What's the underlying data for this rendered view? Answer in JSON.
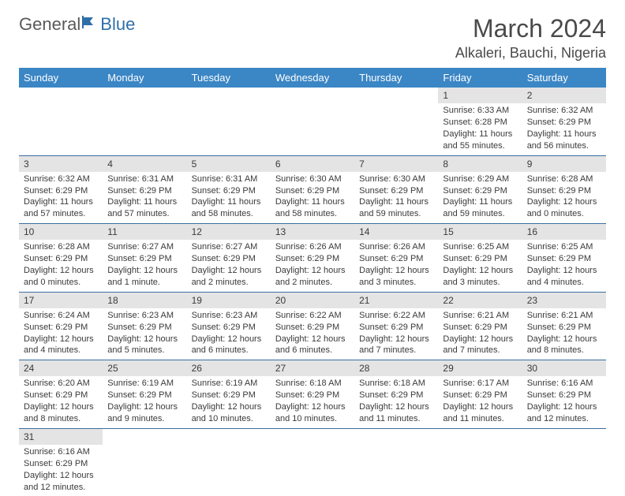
{
  "logo": {
    "general": "General",
    "blue": "Blue"
  },
  "title": "March 2024",
  "location": "Alkaleri, Bauchi, Nigeria",
  "colors": {
    "header_bg": "#3b86c5",
    "header_fg": "#ffffff",
    "daynum_bg": "#e4e4e4",
    "rule": "#3b6fa0",
    "logo_blue": "#2f6fa8",
    "text": "#3a3a3a"
  },
  "weekdays": [
    "Sunday",
    "Monday",
    "Tuesday",
    "Wednesday",
    "Thursday",
    "Friday",
    "Saturday"
  ],
  "weeks": [
    [
      null,
      null,
      null,
      null,
      null,
      {
        "n": "1",
        "sr": "Sunrise: 6:33 AM",
        "ss": "Sunset: 6:28 PM",
        "dl": "Daylight: 11 hours and 55 minutes."
      },
      {
        "n": "2",
        "sr": "Sunrise: 6:32 AM",
        "ss": "Sunset: 6:29 PM",
        "dl": "Daylight: 11 hours and 56 minutes."
      }
    ],
    [
      {
        "n": "3",
        "sr": "Sunrise: 6:32 AM",
        "ss": "Sunset: 6:29 PM",
        "dl": "Daylight: 11 hours and 57 minutes."
      },
      {
        "n": "4",
        "sr": "Sunrise: 6:31 AM",
        "ss": "Sunset: 6:29 PM",
        "dl": "Daylight: 11 hours and 57 minutes."
      },
      {
        "n": "5",
        "sr": "Sunrise: 6:31 AM",
        "ss": "Sunset: 6:29 PM",
        "dl": "Daylight: 11 hours and 58 minutes."
      },
      {
        "n": "6",
        "sr": "Sunrise: 6:30 AM",
        "ss": "Sunset: 6:29 PM",
        "dl": "Daylight: 11 hours and 58 minutes."
      },
      {
        "n": "7",
        "sr": "Sunrise: 6:30 AM",
        "ss": "Sunset: 6:29 PM",
        "dl": "Daylight: 11 hours and 59 minutes."
      },
      {
        "n": "8",
        "sr": "Sunrise: 6:29 AM",
        "ss": "Sunset: 6:29 PM",
        "dl": "Daylight: 11 hours and 59 minutes."
      },
      {
        "n": "9",
        "sr": "Sunrise: 6:28 AM",
        "ss": "Sunset: 6:29 PM",
        "dl": "Daylight: 12 hours and 0 minutes."
      }
    ],
    [
      {
        "n": "10",
        "sr": "Sunrise: 6:28 AM",
        "ss": "Sunset: 6:29 PM",
        "dl": "Daylight: 12 hours and 0 minutes."
      },
      {
        "n": "11",
        "sr": "Sunrise: 6:27 AM",
        "ss": "Sunset: 6:29 PM",
        "dl": "Daylight: 12 hours and 1 minute."
      },
      {
        "n": "12",
        "sr": "Sunrise: 6:27 AM",
        "ss": "Sunset: 6:29 PM",
        "dl": "Daylight: 12 hours and 2 minutes."
      },
      {
        "n": "13",
        "sr": "Sunrise: 6:26 AM",
        "ss": "Sunset: 6:29 PM",
        "dl": "Daylight: 12 hours and 2 minutes."
      },
      {
        "n": "14",
        "sr": "Sunrise: 6:26 AM",
        "ss": "Sunset: 6:29 PM",
        "dl": "Daylight: 12 hours and 3 minutes."
      },
      {
        "n": "15",
        "sr": "Sunrise: 6:25 AM",
        "ss": "Sunset: 6:29 PM",
        "dl": "Daylight: 12 hours and 3 minutes."
      },
      {
        "n": "16",
        "sr": "Sunrise: 6:25 AM",
        "ss": "Sunset: 6:29 PM",
        "dl": "Daylight: 12 hours and 4 minutes."
      }
    ],
    [
      {
        "n": "17",
        "sr": "Sunrise: 6:24 AM",
        "ss": "Sunset: 6:29 PM",
        "dl": "Daylight: 12 hours and 4 minutes."
      },
      {
        "n": "18",
        "sr": "Sunrise: 6:23 AM",
        "ss": "Sunset: 6:29 PM",
        "dl": "Daylight: 12 hours and 5 minutes."
      },
      {
        "n": "19",
        "sr": "Sunrise: 6:23 AM",
        "ss": "Sunset: 6:29 PM",
        "dl": "Daylight: 12 hours and 6 minutes."
      },
      {
        "n": "20",
        "sr": "Sunrise: 6:22 AM",
        "ss": "Sunset: 6:29 PM",
        "dl": "Daylight: 12 hours and 6 minutes."
      },
      {
        "n": "21",
        "sr": "Sunrise: 6:22 AM",
        "ss": "Sunset: 6:29 PM",
        "dl": "Daylight: 12 hours and 7 minutes."
      },
      {
        "n": "22",
        "sr": "Sunrise: 6:21 AM",
        "ss": "Sunset: 6:29 PM",
        "dl": "Daylight: 12 hours and 7 minutes."
      },
      {
        "n": "23",
        "sr": "Sunrise: 6:21 AM",
        "ss": "Sunset: 6:29 PM",
        "dl": "Daylight: 12 hours and 8 minutes."
      }
    ],
    [
      {
        "n": "24",
        "sr": "Sunrise: 6:20 AM",
        "ss": "Sunset: 6:29 PM",
        "dl": "Daylight: 12 hours and 8 minutes."
      },
      {
        "n": "25",
        "sr": "Sunrise: 6:19 AM",
        "ss": "Sunset: 6:29 PM",
        "dl": "Daylight: 12 hours and 9 minutes."
      },
      {
        "n": "26",
        "sr": "Sunrise: 6:19 AM",
        "ss": "Sunset: 6:29 PM",
        "dl": "Daylight: 12 hours and 10 minutes."
      },
      {
        "n": "27",
        "sr": "Sunrise: 6:18 AM",
        "ss": "Sunset: 6:29 PM",
        "dl": "Daylight: 12 hours and 10 minutes."
      },
      {
        "n": "28",
        "sr": "Sunrise: 6:18 AM",
        "ss": "Sunset: 6:29 PM",
        "dl": "Daylight: 12 hours and 11 minutes."
      },
      {
        "n": "29",
        "sr": "Sunrise: 6:17 AM",
        "ss": "Sunset: 6:29 PM",
        "dl": "Daylight: 12 hours and 11 minutes."
      },
      {
        "n": "30",
        "sr": "Sunrise: 6:16 AM",
        "ss": "Sunset: 6:29 PM",
        "dl": "Daylight: 12 hours and 12 minutes."
      }
    ],
    [
      {
        "n": "31",
        "sr": "Sunrise: 6:16 AM",
        "ss": "Sunset: 6:29 PM",
        "dl": "Daylight: 12 hours and 12 minutes."
      },
      null,
      null,
      null,
      null,
      null,
      null
    ]
  ]
}
